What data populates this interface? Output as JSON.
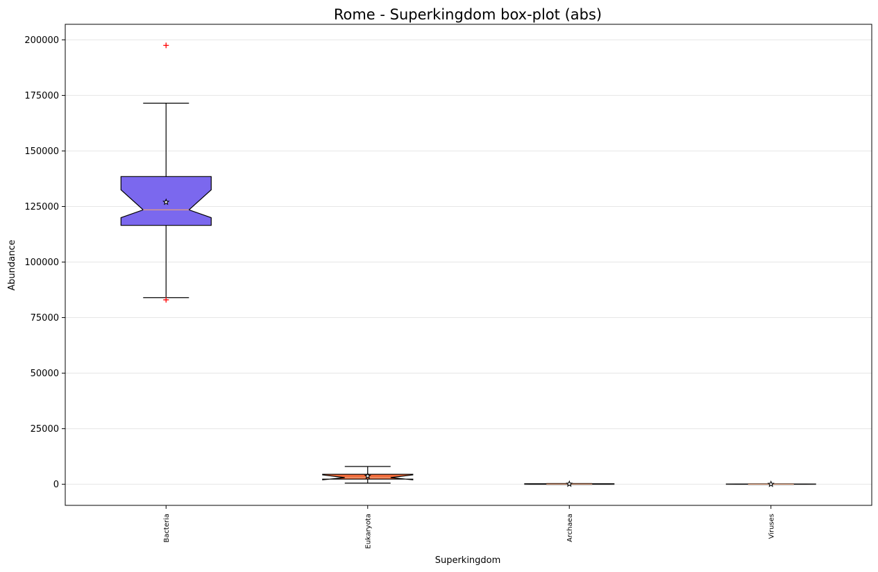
{
  "chart_data": {
    "type": "box",
    "title": "Rome - Superkingdom box-plot (abs)",
    "xlabel": "Superkingdom",
    "ylabel": "Abundance",
    "ylim": [
      -9500,
      207000
    ],
    "yticks": [
      0,
      25000,
      50000,
      75000,
      100000,
      125000,
      150000,
      175000,
      200000
    ],
    "grid": "horizontal",
    "notched": true,
    "categories": [
      "Bacteria",
      "Eukaryota",
      "Archaea",
      "Viruses"
    ],
    "boxes": [
      {
        "name": "Bacteria",
        "color": "#7b68ee",
        "whisker_low": 84000,
        "q1": 116500,
        "median": 123500,
        "q3": 138500,
        "whisker_high": 171500,
        "mean": 127000,
        "notch_low": 120000,
        "notch_high": 132500,
        "outliers": [
          197500,
          83000
        ]
      },
      {
        "name": "Eukaryota",
        "color": "#f26b3a",
        "whisker_low": 500,
        "q1": 2300,
        "median": 3000,
        "q3": 4500,
        "whisker_high": 8000,
        "mean": 3700,
        "notch_low": 2000,
        "notch_high": 4200,
        "outliers": []
      },
      {
        "name": "Archaea",
        "color": "#f26b3a",
        "whisker_low": 0,
        "q1": 0,
        "median": 100,
        "q3": 250,
        "whisker_high": 350,
        "mean": 120,
        "notch_low": 0,
        "notch_high": 250,
        "outliers": []
      },
      {
        "name": "Viruses",
        "color": "#f26b3a",
        "whisker_low": 0,
        "q1": 0,
        "median": 50,
        "q3": 120,
        "whisker_high": 200,
        "mean": 60,
        "notch_low": 0,
        "notch_high": 120,
        "outliers": []
      }
    ],
    "colors": {
      "median": "#e8a07a",
      "outlier": "#ff0000",
      "grid": "#e6e6e6"
    }
  }
}
